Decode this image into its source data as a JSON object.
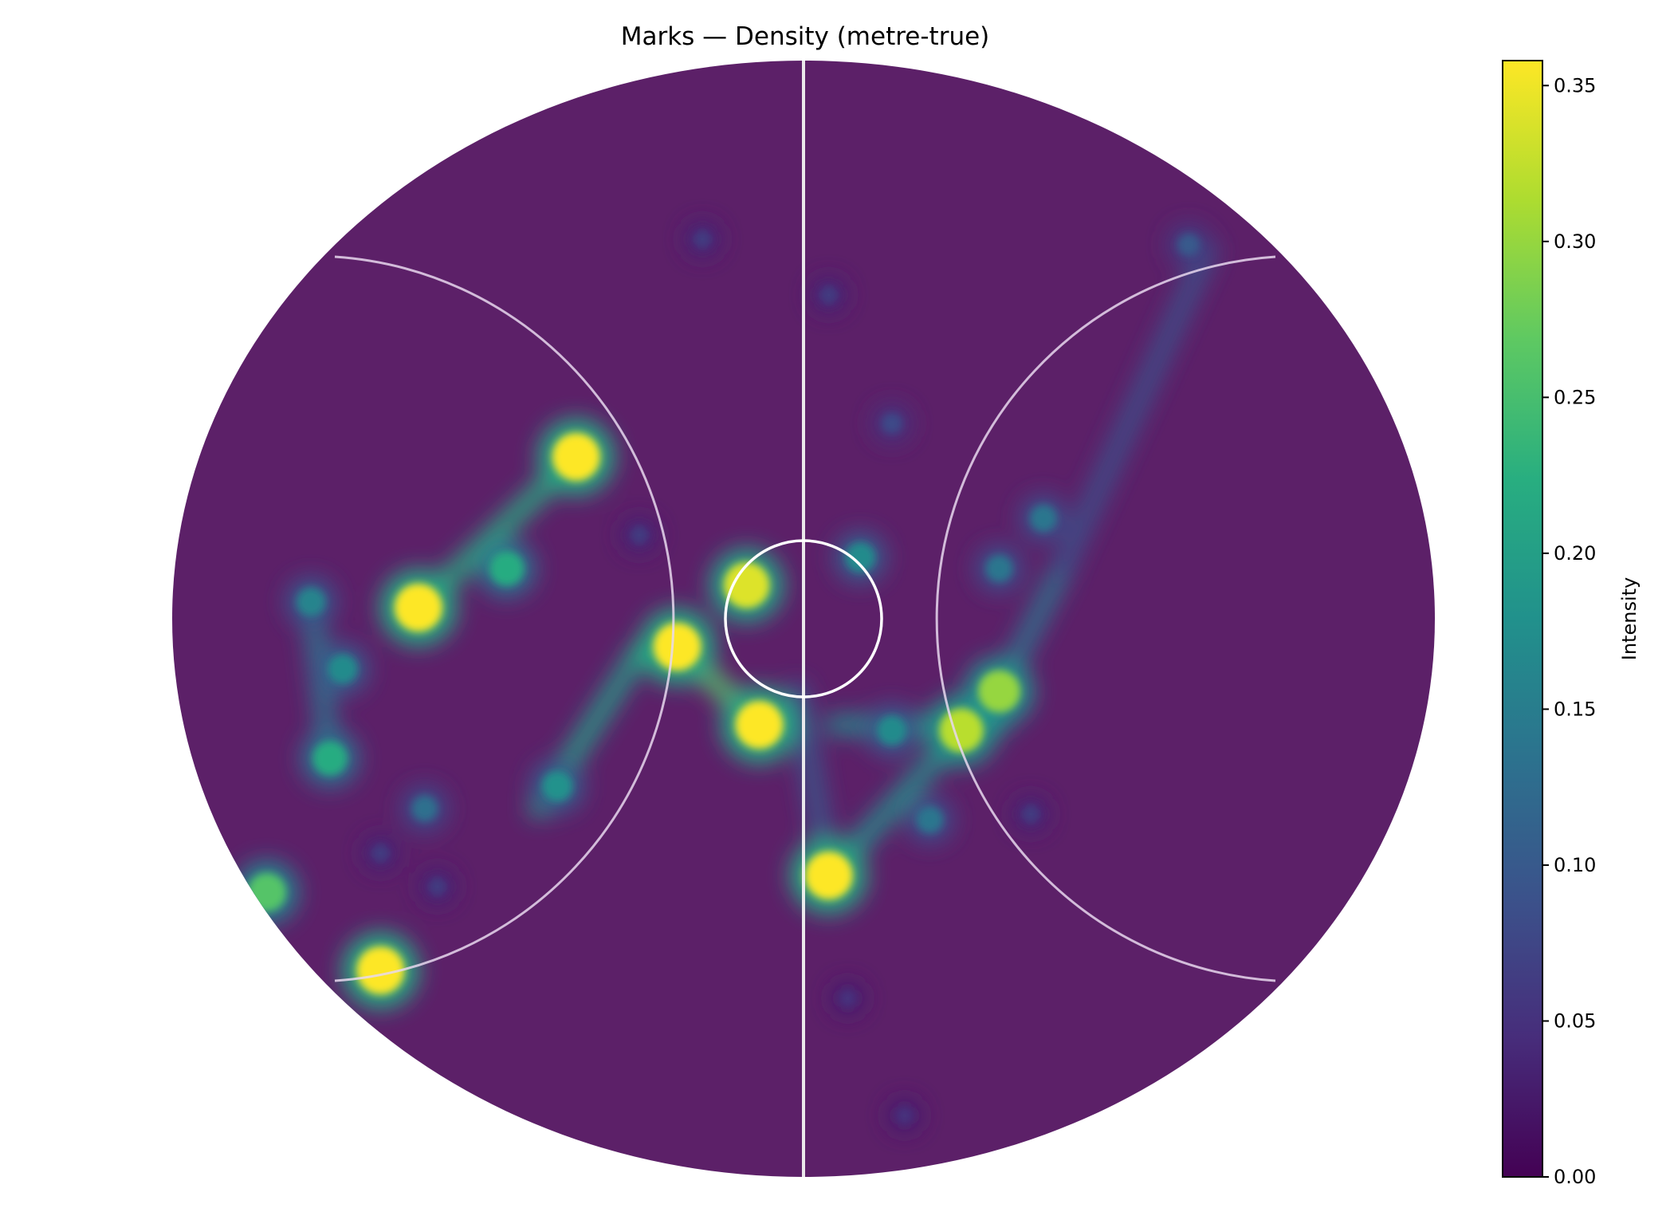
{
  "chart_data": {
    "type": "heatmap",
    "title": "Marks — Density (metre-true)",
    "colorbar": {
      "label": "Intensity",
      "range": [
        0.0,
        0.358
      ],
      "ticks": [
        0.0,
        0.05,
        0.1,
        0.15,
        0.2,
        0.25,
        0.3,
        0.35
      ],
      "tick_labels": [
        "0.00",
        "0.05",
        "0.10",
        "0.15",
        "0.20",
        "0.25",
        "0.30",
        "0.35"
      ],
      "colormap": "viridis"
    },
    "field": {
      "shape": "oval",
      "markings": [
        "centre-line",
        "centre-circle",
        "left-arc",
        "right-arc"
      ]
    },
    "density_hotspots": [
      {
        "x": -0.36,
        "y": 0.29,
        "value": 0.36
      },
      {
        "x": -0.61,
        "y": 0.02,
        "value": 0.36
      },
      {
        "x": -0.47,
        "y": 0.09,
        "value": 0.22
      },
      {
        "x": -0.2,
        "y": -0.05,
        "value": 0.36
      },
      {
        "x": -0.09,
        "y": 0.06,
        "value": 0.34
      },
      {
        "x": -0.07,
        "y": -0.19,
        "value": 0.36
      },
      {
        "x": 0.04,
        "y": -0.46,
        "value": 0.36
      },
      {
        "x": 0.25,
        "y": -0.2,
        "value": 0.32
      },
      {
        "x": -0.75,
        "y": -0.25,
        "value": 0.22
      },
      {
        "x": -0.78,
        "y": 0.03,
        "value": 0.16
      },
      {
        "x": -0.73,
        "y": -0.09,
        "value": 0.17
      },
      {
        "x": -0.67,
        "y": -0.63,
        "value": 0.36
      },
      {
        "x": -0.85,
        "y": -0.49,
        "value": 0.26
      },
      {
        "x": -0.6,
        "y": -0.34,
        "value": 0.13
      },
      {
        "x": -0.39,
        "y": -0.3,
        "value": 0.18
      },
      {
        "x": 0.09,
        "y": 0.11,
        "value": 0.17
      },
      {
        "x": 0.14,
        "y": -0.2,
        "value": 0.17
      },
      {
        "x": 0.31,
        "y": 0.09,
        "value": 0.14
      },
      {
        "x": 0.61,
        "y": 0.67,
        "value": 0.1
      },
      {
        "x": 0.2,
        "y": -0.36,
        "value": 0.14
      },
      {
        "x": -0.16,
        "y": 0.68,
        "value": 0.06
      },
      {
        "x": 0.04,
        "y": 0.58,
        "value": 0.06
      },
      {
        "x": 0.14,
        "y": 0.35,
        "value": 0.08
      },
      {
        "x": -0.26,
        "y": 0.15,
        "value": 0.06
      },
      {
        "x": 0.36,
        "y": -0.35,
        "value": 0.06
      },
      {
        "x": 0.07,
        "y": -0.68,
        "value": 0.05
      },
      {
        "x": 0.16,
        "y": -0.89,
        "value": 0.05
      },
      {
        "x": -0.67,
        "y": -0.42,
        "value": 0.06
      },
      {
        "x": -0.58,
        "y": -0.48,
        "value": 0.06
      },
      {
        "x": 0.31,
        "y": -0.13,
        "value": 0.3
      },
      {
        "x": 0.38,
        "y": 0.18,
        "value": 0.14
      }
    ],
    "density_ridges": [
      {
        "from": [
          -0.61,
          0.02
        ],
        "to": [
          -0.36,
          0.29
        ],
        "value": 0.22
      },
      {
        "from": [
          -0.42,
          -0.34
        ],
        "to": [
          -0.26,
          -0.06
        ],
        "value": 0.2
      },
      {
        "from": [
          -0.26,
          -0.06
        ],
        "to": [
          -0.2,
          -0.05
        ],
        "value": 0.22
      },
      {
        "from": [
          -0.2,
          -0.05
        ],
        "to": [
          -0.07,
          -0.19
        ],
        "value": 0.26
      },
      {
        "from": [
          0.04,
          -0.46
        ],
        "to": [
          0.31,
          -0.13
        ],
        "value": 0.18
      },
      {
        "from": [
          0.31,
          -0.13
        ],
        "to": [
          0.41,
          0.09
        ],
        "value": 0.14
      },
      {
        "from": [
          0.05,
          -0.19
        ],
        "to": [
          0.31,
          -0.19
        ],
        "value": 0.17
      },
      {
        "from": [
          -0.01,
          -0.13
        ],
        "to": [
          0.04,
          -0.46
        ],
        "value": 0.1
      },
      {
        "from": [
          0.41,
          0.09
        ],
        "to": [
          0.64,
          0.66
        ],
        "value": 0.09
      },
      {
        "from": [
          -0.78,
          0.03
        ],
        "to": [
          -0.75,
          -0.25
        ],
        "value": 0.14
      }
    ]
  }
}
